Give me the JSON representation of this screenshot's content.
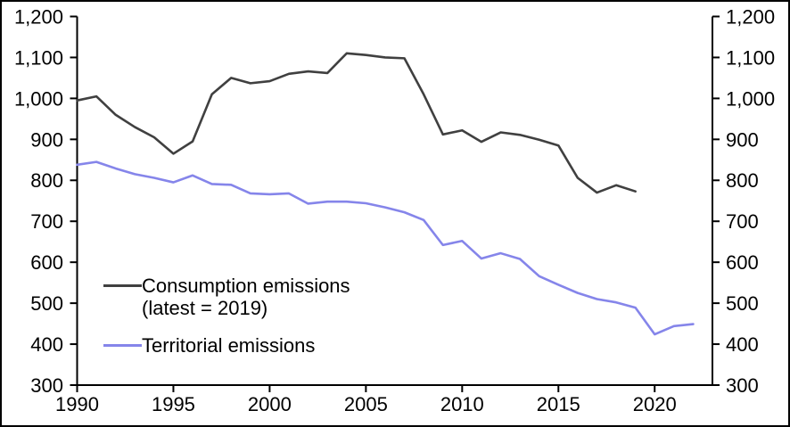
{
  "figure": {
    "background": "#ffffff",
    "border_color": "#000000",
    "axis_color": "#000000",
    "tick_label_color": "#000000"
  },
  "chart_data": {
    "type": "line",
    "title": "",
    "xlabel": "",
    "ylabel": "",
    "grid": false,
    "x_start_year": 1990,
    "x_axis_end_year": 2023,
    "x_tick_years": [
      1990,
      1995,
      2000,
      2005,
      2010,
      2015,
      2020
    ],
    "ylim": [
      300,
      1200
    ],
    "y_tick_step": 100,
    "y_tick_values": [
      300,
      400,
      500,
      600,
      700,
      800,
      900,
      1000,
      1100,
      1200
    ],
    "y_tick_labels": [
      "300",
      "400",
      "500",
      "600",
      "700",
      "800",
      "900",
      "1,000",
      "1,100",
      "1,200"
    ],
    "dual_axis": true,
    "legend_position": "inside-bottom-left",
    "series": [
      {
        "name": "Consumption emissions (latest = 2019)",
        "color": "#404040",
        "start_year": 1990,
        "end_year": 2019,
        "values": [
          995,
          1005,
          960,
          930,
          905,
          865,
          895,
          1010,
          1050,
          1037,
          1042,
          1060,
          1066,
          1062,
          1110,
          1106,
          1100,
          1098,
          1010,
          912,
          922,
          894,
          917,
          911,
          899,
          885,
          806,
          770,
          788,
          773
        ]
      },
      {
        "name": "Territorial emissions",
        "color": "#8585ea",
        "start_year": 1990,
        "end_year": 2022,
        "values": [
          838,
          845,
          829,
          815,
          806,
          795,
          812,
          791,
          789,
          768,
          766,
          768,
          743,
          748,
          748,
          744,
          734,
          722,
          703,
          642,
          652,
          609,
          622,
          608,
          566,
          545,
          525,
          510,
          502,
          489,
          424,
          444,
          449
        ]
      }
    ],
    "legend": {
      "entries": [
        {
          "label_line1": "Consumption emissions",
          "label_line2": "(latest = 2019)",
          "color": "#404040"
        },
        {
          "label_line1": "Territorial emissions",
          "label_line2": "",
          "color": "#8585ea"
        }
      ]
    }
  }
}
